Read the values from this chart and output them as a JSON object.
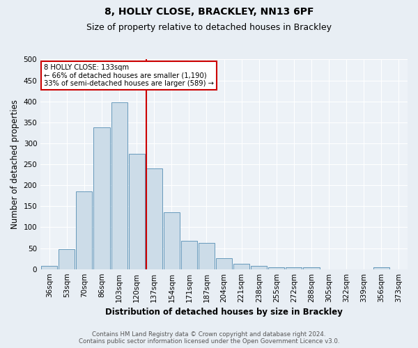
{
  "title": "8, HOLLY CLOSE, BRACKLEY, NN13 6PF",
  "subtitle": "Size of property relative to detached houses in Brackley",
  "xlabel": "Distribution of detached houses by size in Brackley",
  "ylabel": "Number of detached properties",
  "footnote1": "Contains HM Land Registry data © Crown copyright and database right 2024.",
  "footnote2": "Contains public sector information licensed under the Open Government Licence v3.0.",
  "bin_labels": [
    "36sqm",
    "53sqm",
    "70sqm",
    "86sqm",
    "103sqm",
    "120sqm",
    "137sqm",
    "154sqm",
    "171sqm",
    "187sqm",
    "204sqm",
    "221sqm",
    "238sqm",
    "255sqm",
    "272sqm",
    "288sqm",
    "305sqm",
    "322sqm",
    "339sqm",
    "356sqm",
    "373sqm"
  ],
  "bar_heights": [
    8,
    47,
    185,
    338,
    398,
    275,
    240,
    136,
    68,
    62,
    26,
    12,
    8,
    5,
    4,
    4,
    0,
    0,
    0,
    4,
    0
  ],
  "bar_color": "#ccdce8",
  "bar_edge_color": "#6699bb",
  "ref_line_index": 6,
  "ref_line_color": "#cc0000",
  "annotation_title": "8 HOLLY CLOSE: 133sqm",
  "annotation_line1": "← 66% of detached houses are smaller (1,190)",
  "annotation_line2": "33% of semi-detached houses are larger (589) →",
  "annotation_box_color": "#ffffff",
  "annotation_box_edge_color": "#cc0000",
  "ylim": [
    0,
    500
  ],
  "yticks": [
    0,
    50,
    100,
    150,
    200,
    250,
    300,
    350,
    400,
    450,
    500
  ],
  "bg_color": "#e8eef4",
  "plot_bg_color": "#edf2f7",
  "grid_color": "#ffffff",
  "title_fontsize": 10,
  "subtitle_fontsize": 9,
  "axis_label_fontsize": 8.5,
  "tick_fontsize": 7.5,
  "footnote_fontsize": 6.2
}
